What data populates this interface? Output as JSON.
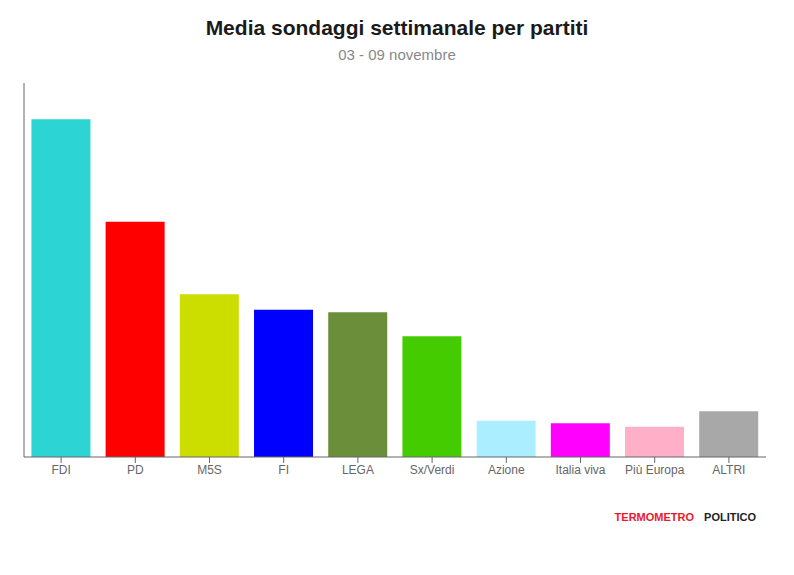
{
  "chart_data": {
    "type": "bar",
    "title": "Media sondaggi settimanale per partiti",
    "subtitle": "03 - 09 novembre",
    "categories": [
      "FDI",
      "PD",
      "M5S",
      "FI",
      "LEGA",
      "Sx/Verdi",
      "Azione",
      "Italia viva",
      "Più Europa",
      "ALTRI"
    ],
    "values": [
      28.0,
      19.5,
      13.5,
      12.2,
      12.0,
      10.0,
      3.0,
      2.8,
      2.5,
      3.8
    ],
    "colors": [
      "#2DD4D4",
      "#FF0000",
      "#CCDD00",
      "#0000FF",
      "#6B8E3A",
      "#44CC00",
      "#AAEEFF",
      "#FF00FF",
      "#FFB0C8",
      "#A8A8A8"
    ],
    "ylim": [
      0,
      31
    ],
    "grid": false,
    "tick_labels": "x",
    "annotations": [
      {
        "text": "TERMOMETRO",
        "color": "#E8192C"
      },
      {
        "text": "POLITICO",
        "color": "#222222"
      }
    ]
  }
}
